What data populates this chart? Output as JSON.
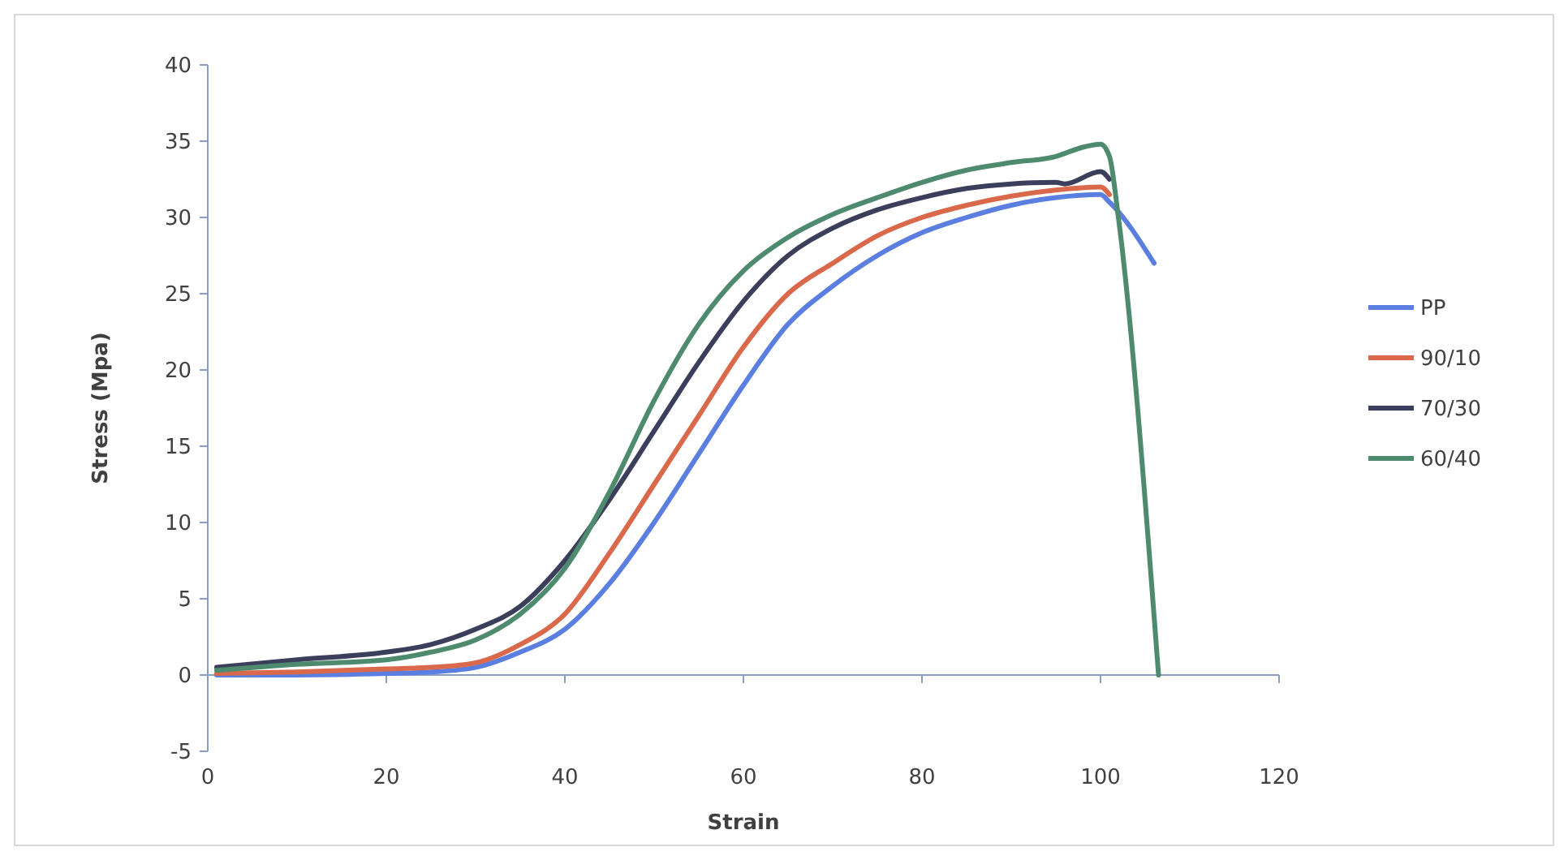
{
  "chart_data": {
    "type": "line",
    "xlabel": "Strain",
    "ylabel": "Stress (Mpa)",
    "xlim": [
      0,
      120
    ],
    "xticks": [
      0,
      20,
      40,
      60,
      80,
      100,
      120
    ],
    "ylim": [
      -5,
      40
    ],
    "yticks": [
      -5,
      0,
      5,
      10,
      15,
      20,
      25,
      30,
      35,
      40
    ],
    "legend": "right",
    "ref_lines": [
      {
        "axis": "y",
        "value": 0,
        "color": "#8a9bc4"
      }
    ],
    "grid": false,
    "marker": "none",
    "line_style": "solid",
    "series": [
      {
        "name": "PP",
        "color": "#5b7fe0",
        "x": [
          1,
          10,
          20,
          25,
          30,
          35,
          40,
          45,
          50,
          55,
          60,
          65,
          70,
          75,
          80,
          85,
          90,
          95,
          100,
          101,
          106
        ],
        "values": [
          0,
          0,
          0.1,
          0.2,
          0.5,
          1.5,
          3,
          6,
          10,
          14.5,
          19,
          23,
          25.5,
          27.5,
          29,
          30,
          30.8,
          31.3,
          31.5,
          31,
          27
        ]
      },
      {
        "name": "90/10",
        "color": "#d9694a",
        "x": [
          1,
          10,
          20,
          25,
          30,
          35,
          40,
          45,
          50,
          55,
          60,
          65,
          70,
          75,
          80,
          85,
          90,
          95,
          100,
          101
        ],
        "values": [
          0.1,
          0.2,
          0.4,
          0.5,
          0.8,
          2,
          4,
          8,
          12.5,
          17,
          21.5,
          25,
          27,
          28.8,
          30,
          30.8,
          31.4,
          31.8,
          32,
          31.5
        ]
      },
      {
        "name": "70/30",
        "color": "#3b3f5c",
        "x": [
          1,
          10,
          20,
          25,
          30,
          35,
          40,
          45,
          50,
          55,
          60,
          65,
          70,
          75,
          80,
          85,
          90,
          95,
          96,
          100,
          101
        ],
        "values": [
          0.5,
          1,
          1.5,
          2,
          3,
          4.5,
          7.5,
          11.5,
          16,
          20.5,
          24.5,
          27.5,
          29.3,
          30.5,
          31.3,
          31.9,
          32.2,
          32.3,
          32.2,
          33,
          32.5
        ]
      },
      {
        "name": "60/40",
        "color": "#4e8b6e",
        "x": [
          1,
          10,
          20,
          25,
          30,
          35,
          40,
          45,
          50,
          55,
          60,
          65,
          70,
          75,
          80,
          85,
          90,
          95,
          96,
          98,
          100,
          101,
          102,
          106.5
        ],
        "values": [
          0.3,
          0.7,
          1,
          1.5,
          2.3,
          4,
          7,
          12,
          18,
          23,
          26.5,
          28.7,
          30.2,
          31.3,
          32.3,
          33.1,
          33.6,
          34,
          34.2,
          34.6,
          34.8,
          34,
          30,
          0
        ]
      }
    ]
  }
}
